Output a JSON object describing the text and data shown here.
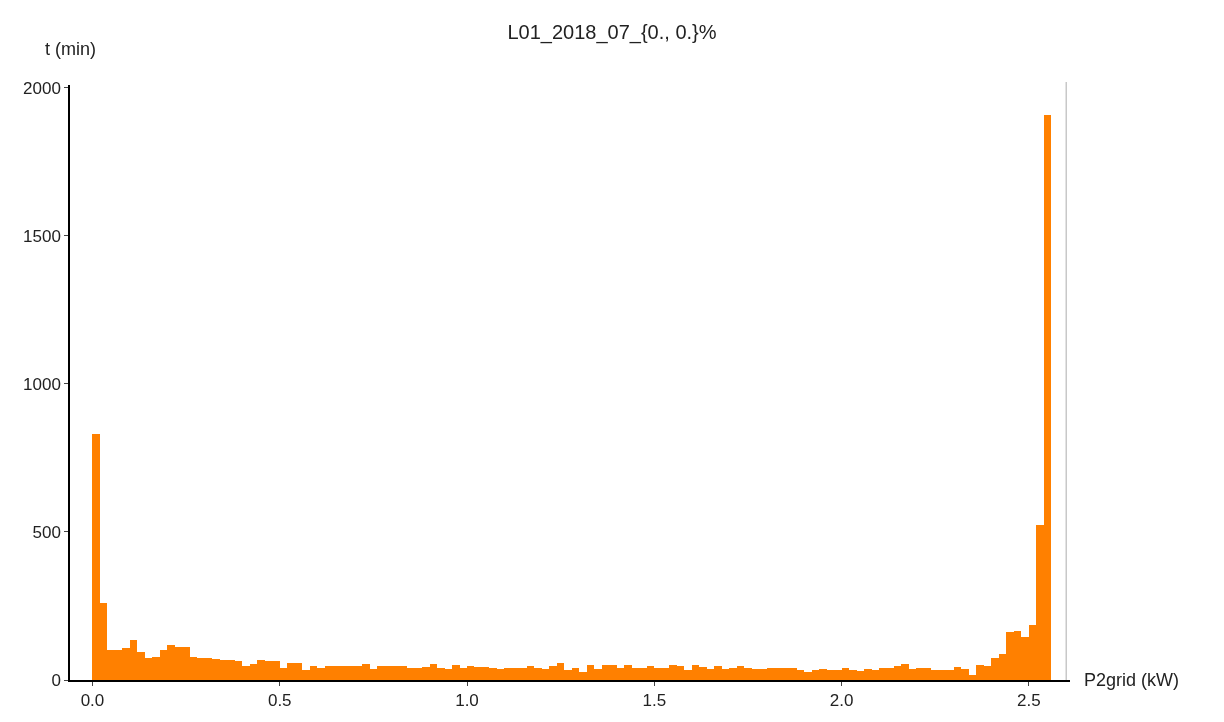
{
  "chart_data": {
    "type": "histogram",
    "title": "L01_2018_07_{0., 0.}%",
    "xlabel": "P2grid (kW)",
    "ylabel": "t (min)",
    "color": "#ff8000",
    "bins": [
      0,
      0.02,
      0.04,
      0.06,
      0.08,
      0.1,
      0.12,
      0.14,
      0.16,
      0.18,
      0.2,
      0.22,
      0.24,
      0.26,
      0.28,
      0.3,
      0.32,
      0.34,
      0.36,
      0.38,
      0.4,
      0.42,
      0.44,
      0.46,
      0.48,
      0.5,
      0.52,
      0.54,
      0.56,
      0.58,
      0.6,
      0.62,
      0.64,
      0.66,
      0.68,
      0.7,
      0.72,
      0.74,
      0.76,
      0.78,
      0.8,
      0.82,
      0.84,
      0.86,
      0.88,
      0.9,
      0.92,
      0.94,
      0.96,
      0.98,
      1.0,
      1.02,
      1.04,
      1.06,
      1.08,
      1.1,
      1.12,
      1.14,
      1.16,
      1.18,
      1.2,
      1.22,
      1.24,
      1.26,
      1.28,
      1.3,
      1.32,
      1.34,
      1.36,
      1.38,
      1.4,
      1.42,
      1.44,
      1.46,
      1.48,
      1.5,
      1.52,
      1.54,
      1.56,
      1.58,
      1.6,
      1.62,
      1.64,
      1.66,
      1.68,
      1.7,
      1.72,
      1.74,
      1.76,
      1.78,
      1.8,
      1.82,
      1.84,
      1.86,
      1.88,
      1.9,
      1.92,
      1.94,
      1.96,
      1.98,
      2.0,
      2.02,
      2.04,
      2.06,
      2.08,
      2.1,
      2.12,
      2.14,
      2.16,
      2.18,
      2.2,
      2.22,
      2.24,
      2.26,
      2.28,
      2.3,
      2.32,
      2.34,
      2.36,
      2.38,
      2.4,
      2.42,
      2.44,
      2.46,
      2.48,
      2.5,
      2.52,
      2.54,
      2.56
    ],
    "values": [
      832,
      260,
      101,
      101,
      107,
      134,
      93,
      73,
      79,
      103,
      119,
      112,
      113,
      79,
      74,
      76,
      70,
      66,
      66,
      63,
      49,
      54,
      66,
      64,
      64,
      41,
      58,
      58,
      33,
      49,
      40,
      49,
      49,
      46,
      46,
      46,
      53,
      37,
      49,
      49,
      46,
      49,
      41,
      41,
      44,
      55,
      40,
      37,
      51,
      41,
      49,
      44,
      44,
      42,
      37,
      40,
      40,
      42,
      46,
      42,
      37,
      47,
      57,
      33,
      40,
      27,
      51,
      37,
      51,
      51,
      41,
      51,
      42,
      42,
      46,
      41,
      41,
      51,
      46,
      33,
      51,
      44,
      37,
      46,
      37,
      40,
      46,
      40,
      37,
      37,
      42,
      42,
      42,
      42,
      33,
      27,
      33,
      38,
      35,
      33,
      40,
      35,
      29,
      38,
      35,
      41,
      42,
      47,
      55,
      36,
      41,
      40,
      35,
      33,
      33,
      44,
      37,
      18,
      51,
      46,
      73,
      89,
      163,
      167,
      145,
      185,
      522,
      1910
    ],
    "xlim": [
      -0.06,
      2.61
    ],
    "ylim": [
      0,
      2010
    ],
    "xticks": [
      {
        "value": 0,
        "label": "0.0"
      },
      0.5,
      {
        "value": 1,
        "label": "1.0"
      },
      1.5,
      {
        "value": 2,
        "label": "2.0"
      },
      2.5
    ],
    "yticks": [
      0,
      500,
      1000,
      1500,
      2000
    ],
    "ref_lines": [
      {
        "axis": "x",
        "value": 2.6,
        "color": "#c8c8c8"
      }
    ]
  }
}
